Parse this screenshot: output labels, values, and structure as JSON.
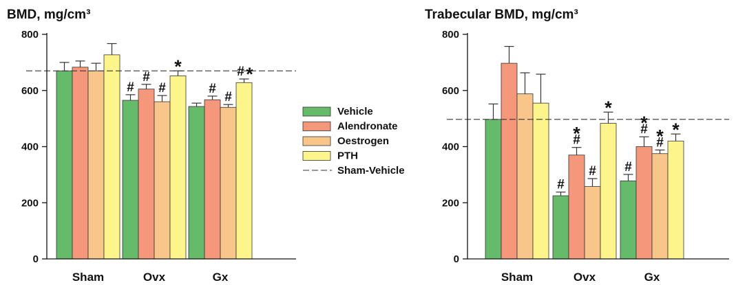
{
  "colors": {
    "Vehicle": "#66bb6a",
    "Alendronate": "#f4977a",
    "Oestrogen": "#f8c68a",
    "PTH": "#fdf58c",
    "error_bar": "#333333",
    "axis": "#111111",
    "reference_line": "#333333"
  },
  "legend": {
    "placement": "between-panels",
    "entries": [
      {
        "label": "Vehicle",
        "kind": "box",
        "series": "Vehicle"
      },
      {
        "label": "Alendronate",
        "kind": "box",
        "series": "Alendronate"
      },
      {
        "label": "Oestrogen",
        "kind": "box",
        "series": "Oestrogen"
      },
      {
        "label": "PTH",
        "kind": "box",
        "series": "PTH"
      },
      {
        "label": "Sham-Vehicle",
        "kind": "dashed-line",
        "series": ""
      }
    ]
  },
  "chart_data": [
    {
      "type": "bar",
      "title": "BMD, mg/cm³",
      "xlabel": "",
      "ylabel": "",
      "categories": [
        "Sham",
        "Ovx",
        "Gx"
      ],
      "ylim": [
        0,
        800
      ],
      "yticks": [
        0,
        200,
        400,
        600,
        800
      ],
      "grid": false,
      "reference_line": {
        "name": "Sham-Vehicle",
        "value": 670,
        "style": "dashed"
      },
      "series": [
        {
          "name": "Vehicle",
          "values": [
            670,
            565,
            543
          ],
          "errors": [
            30,
            20,
            12
          ],
          "markers": [
            "",
            "#",
            ""
          ]
        },
        {
          "name": "Alendronate",
          "values": [
            683,
            605,
            567
          ],
          "errors": [
            22,
            17,
            13
          ],
          "markers": [
            "",
            "#",
            "#"
          ]
        },
        {
          "name": "Oestrogen",
          "values": [
            670,
            560,
            540
          ],
          "errors": [
            27,
            22,
            10
          ],
          "markers": [
            "",
            "#",
            "#"
          ]
        },
        {
          "name": "PTH",
          "values": [
            727,
            652,
            628
          ],
          "errors": [
            40,
            18,
            13
          ],
          "markers": [
            "",
            "*",
            "#*"
          ]
        }
      ]
    },
    {
      "type": "bar",
      "title": "Trabecular BMD, mg/cm³",
      "xlabel": "",
      "ylabel": "",
      "categories": [
        "Sham",
        "Ovx",
        "Gx"
      ],
      "ylim": [
        0,
        800
      ],
      "yticks": [
        0,
        200,
        400,
        600,
        800
      ],
      "grid": false,
      "reference_line": {
        "name": "Sham-Vehicle",
        "value": 497,
        "style": "dashed"
      },
      "series": [
        {
          "name": "Vehicle",
          "values": [
            497,
            225,
            278
          ],
          "errors": [
            55,
            13,
            23
          ],
          "markers": [
            "",
            "#",
            "#"
          ]
        },
        {
          "name": "Alendronate",
          "values": [
            697,
            370,
            400
          ],
          "errors": [
            60,
            27,
            35
          ],
          "markers": [
            "",
            "*#",
            "*#"
          ]
        },
        {
          "name": "Oestrogen",
          "values": [
            588,
            258,
            375
          ],
          "errors": [
            75,
            28,
            13
          ],
          "markers": [
            "",
            "#",
            "*#"
          ]
        },
        {
          "name": "PTH",
          "values": [
            555,
            483,
            420
          ],
          "errors": [
            103,
            40,
            25
          ],
          "markers": [
            "",
            "*",
            "*"
          ]
        }
      ]
    }
  ]
}
